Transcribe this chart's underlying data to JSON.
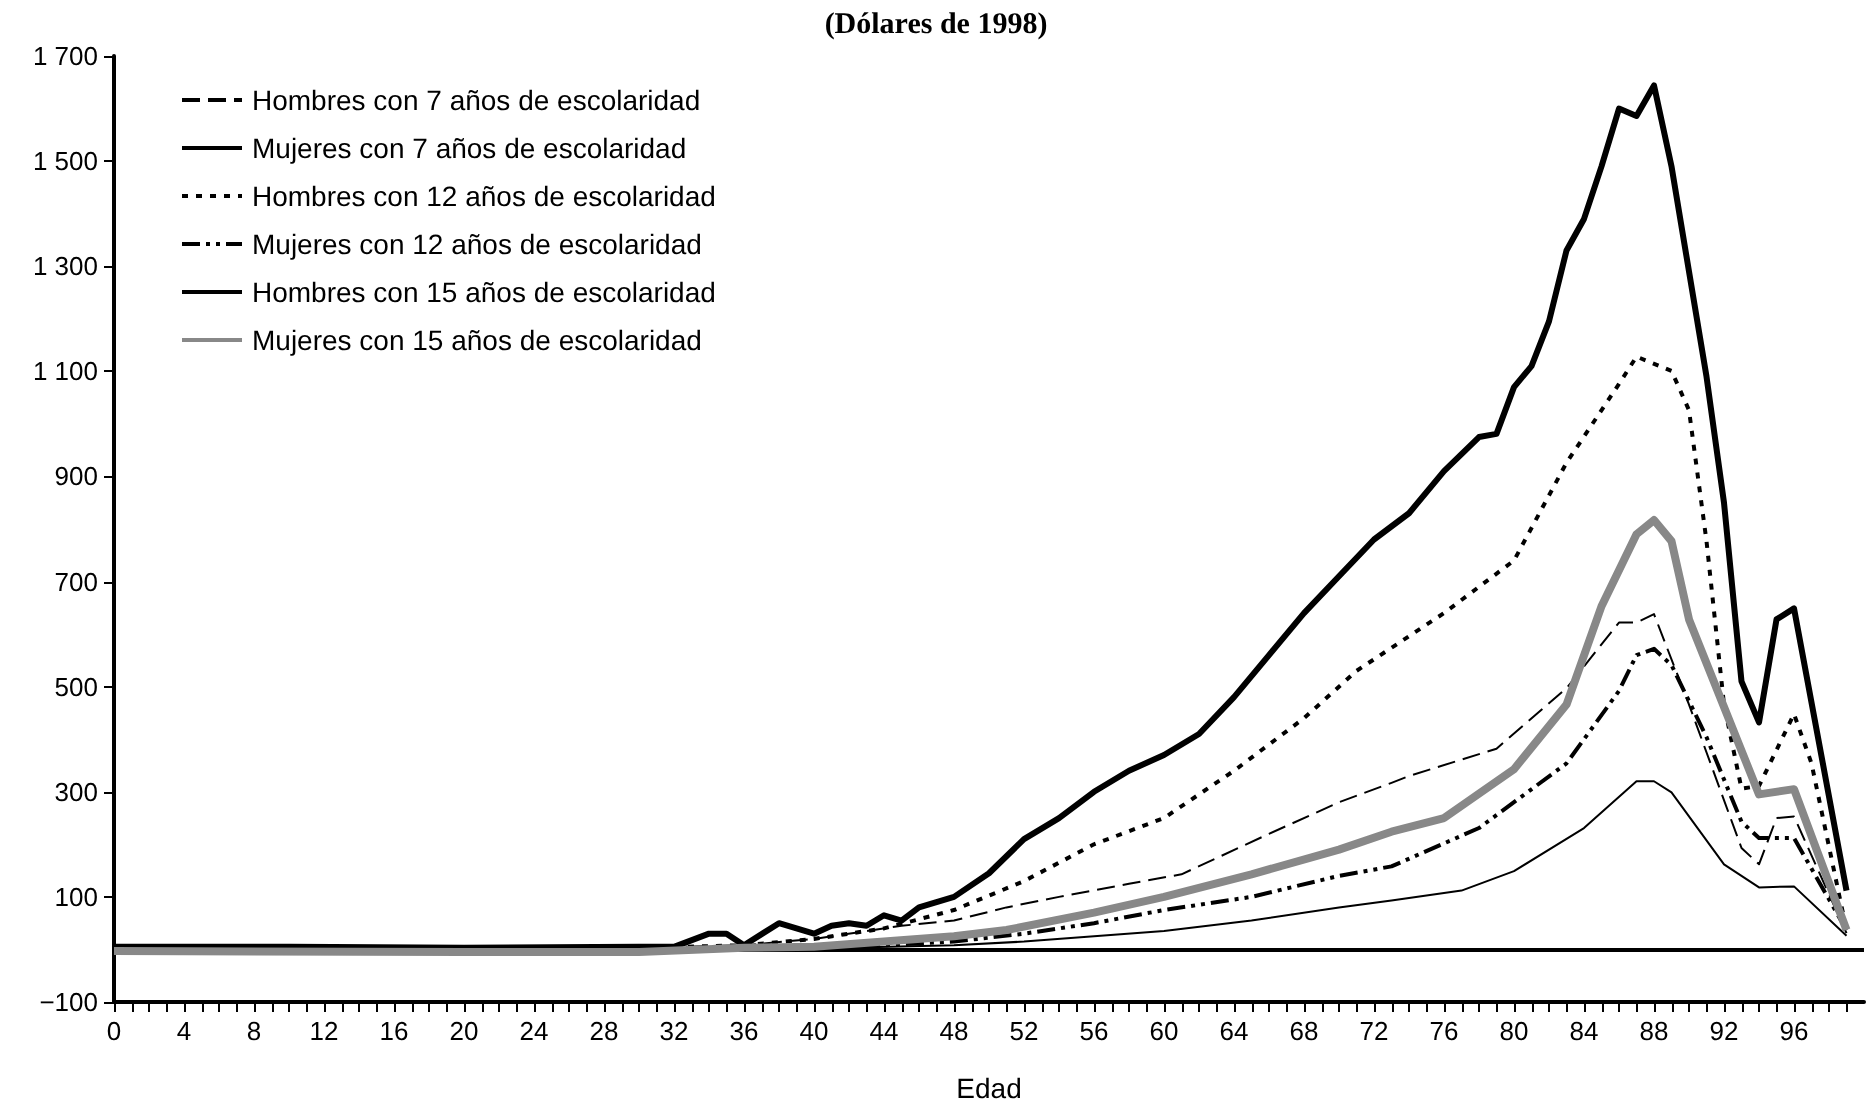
{
  "chart_data": {
    "type": "line",
    "title": "(Dólares de 1998)",
    "xlabel": "Edad",
    "xlim": [
      0,
      100
    ],
    "ylim": [
      -100,
      1700
    ],
    "xticks": [
      0,
      {
        "value": 1,
        "label": null
      },
      {
        "value": 2,
        "label": null
      },
      {
        "value": 3,
        "label": null
      },
      4,
      {
        "value": 5,
        "label": null
      },
      {
        "value": 6,
        "label": null
      },
      {
        "value": 7,
        "label": null
      },
      8,
      {
        "value": 9,
        "label": null
      },
      {
        "value": 10,
        "label": null
      },
      {
        "value": 11,
        "label": null
      },
      12,
      {
        "value": 13,
        "label": null
      },
      {
        "value": 14,
        "label": null
      },
      {
        "value": 15,
        "label": null
      },
      16,
      {
        "value": 17,
        "label": null
      },
      {
        "value": 18,
        "label": null
      },
      {
        "value": 19,
        "label": null
      },
      20,
      {
        "value": 21,
        "label": null
      },
      {
        "value": 22,
        "label": null
      },
      {
        "value": 23,
        "label": null
      },
      24,
      {
        "value": 25,
        "label": null
      },
      {
        "value": 26,
        "label": null
      },
      {
        "value": 27,
        "label": null
      },
      28,
      {
        "value": 29,
        "label": null
      },
      {
        "value": 30,
        "label": null
      },
      {
        "value": 31,
        "label": null
      },
      32,
      {
        "value": 33,
        "label": null
      },
      {
        "value": 34,
        "label": null
      },
      {
        "value": 35,
        "label": null
      },
      36,
      {
        "value": 37,
        "label": null
      },
      {
        "value": 38,
        "label": null
      },
      {
        "value": 39,
        "label": null
      },
      40,
      {
        "value": 41,
        "label": null
      },
      {
        "value": 42,
        "label": null
      },
      {
        "value": 43,
        "label": null
      },
      44,
      {
        "value": 45,
        "label": null
      },
      {
        "value": 46,
        "label": null
      },
      {
        "value": 47,
        "label": null
      },
      48,
      {
        "value": 49,
        "label": null
      },
      {
        "value": 50,
        "label": null
      },
      {
        "value": 51,
        "label": null
      },
      52,
      {
        "value": 53,
        "label": null
      },
      {
        "value": 54,
        "label": null
      },
      {
        "value": 55,
        "label": null
      },
      56,
      {
        "value": 57,
        "label": null
      },
      {
        "value": 58,
        "label": null
      },
      {
        "value": 59,
        "label": null
      },
      60,
      {
        "value": 61,
        "label": null
      },
      {
        "value": 62,
        "label": null
      },
      {
        "value": 63,
        "label": null
      },
      64,
      {
        "value": 65,
        "label": null
      },
      {
        "value": 66,
        "label": null
      },
      {
        "value": 67,
        "label": null
      },
      68,
      {
        "value": 69,
        "label": null
      },
      {
        "value": 70,
        "label": null
      },
      {
        "value": 71,
        "label": null
      },
      72,
      {
        "value": 73,
        "label": null
      },
      {
        "value": 74,
        "label": null
      },
      {
        "value": 75,
        "label": null
      },
      76,
      {
        "value": 77,
        "label": null
      },
      {
        "value": 78,
        "label": null
      },
      {
        "value": 79,
        "label": null
      },
      80,
      {
        "value": 81,
        "label": null
      },
      {
        "value": 82,
        "label": null
      },
      {
        "value": 83,
        "label": null
      },
      84,
      {
        "value": 85,
        "label": null
      },
      {
        "value": 86,
        "label": null
      },
      {
        "value": 87,
        "label": null
      },
      88,
      {
        "value": 89,
        "label": null
      },
      {
        "value": 90,
        "label": null
      },
      {
        "value": 91,
        "label": null
      },
      92,
      {
        "value": 93,
        "label": null
      },
      {
        "value": 94,
        "label": null
      },
      {
        "value": 95,
        "label": null
      },
      96,
      {
        "value": 97,
        "label": null
      },
      {
        "value": 98,
        "label": null
      },
      {
        "value": 99,
        "label": null
      }
    ],
    "yticks": [
      {
        "value": -100,
        "label": "−100"
      },
      100,
      300,
      500,
      700,
      900,
      {
        "value": 1100,
        "label": "1 100"
      },
      {
        "value": 1300,
        "label": "1 300"
      },
      {
        "value": 1500,
        "label": "1 500"
      },
      {
        "value": 1700,
        "label": "1 700"
      }
    ],
    "grid": false,
    "legend": "top left",
    "marker": "none",
    "ref_lines": [
      {
        "axis": "y",
        "value": 0,
        "color": "#000000",
        "line_style": "solid"
      }
    ],
    "series": [
      {
        "name": "Hombres con 7 años de escolaridad",
        "color": "#000000",
        "line_style": "dashed",
        "x": [
          0,
          30,
          36,
          40,
          45,
          48,
          51,
          54,
          58,
          61,
          66,
          70,
          73,
          74,
          79,
          83,
          86,
          87,
          88,
          90,
          93,
          94,
          95,
          96,
          99
        ],
        "values": [
          2,
          3,
          8,
          20,
          45,
          55,
          80,
          100,
          125,
          143,
          220,
          280,
          317,
          330,
          382,
          497,
          622,
          622,
          638,
          466,
          193,
          162,
          250,
          253,
          31
        ]
      },
      {
        "name": "Mujeres con 7 años de escolaridad",
        "color": "#000000",
        "line_style": "solid",
        "x": [
          0,
          40,
          48,
          52,
          56,
          60,
          65,
          70,
          73,
          77,
          80,
          84,
          87,
          88,
          89,
          92,
          94,
          96,
          99
        ],
        "values": [
          0,
          2,
          8,
          15,
          25,
          35,
          55,
          80,
          93,
          112,
          149,
          231,
          320,
          320,
          299,
          162,
          118,
          120,
          26
        ]
      },
      {
        "name": "Hombres con 12 años de escolaridad",
        "color": "#000000",
        "line_style": "dotted",
        "x": [
          0,
          30,
          36,
          40,
          44,
          48,
          52,
          56,
          60,
          64,
          68,
          71,
          76,
          80,
          83,
          86,
          87,
          89,
          90,
          91,
          92,
          93,
          94,
          96,
          97,
          99
        ],
        "values": [
          3,
          3,
          8,
          20,
          40,
          75,
          130,
          200,
          250,
          340,
          440,
          530,
          640,
          740,
          926,
          1076,
          1128,
          1101,
          1026,
          777,
          466,
          306,
          311,
          448,
          354,
          37
        ]
      },
      {
        "name": "Mujeres con 12 años de escolaridad",
        "color": "#000000",
        "line_style": "dashdot",
        "x": [
          0,
          30,
          40,
          44,
          48,
          52,
          56,
          60,
          65,
          70,
          73,
          78,
          83,
          86,
          87,
          88,
          89,
          91,
          93,
          94,
          96,
          99
        ],
        "values": [
          0,
          0,
          3,
          8,
          15,
          30,
          50,
          75,
          100,
          140,
          158,
          231,
          354,
          492,
          560,
          572,
          541,
          404,
          243,
          212,
          212,
          37
        ]
      },
      {
        "name": "Hombres con 15 años de escolaridad",
        "color": "#000000",
        "line_style": "solid",
        "x": [
          0,
          10,
          20,
          30,
          32,
          34,
          35,
          36,
          38,
          40,
          41,
          42,
          43,
          44,
          45,
          46,
          48,
          50,
          52,
          54,
          56,
          58,
          60,
          62,
          64,
          66,
          68,
          70,
          72,
          74,
          76,
          78,
          79,
          80,
          81,
          82,
          83,
          84,
          85,
          86,
          87,
          88,
          89,
          91,
          92,
          93,
          94,
          95,
          96,
          99
        ],
        "values": [
          5,
          5,
          3,
          5,
          5,
          30,
          30,
          8,
          50,
          30,
          45,
          50,
          45,
          65,
          55,
          80,
          100,
          145,
          210,
          250,
          300,
          340,
          370,
          410,
          480,
          560,
          640,
          710,
          780,
          830,
          910,
          975,
          981,
          1070,
          1110,
          1195,
          1330,
          1390,
          1490,
          1600,
          1586,
          1644,
          1490,
          1090,
          850,
          510,
          432,
          628,
          649,
          112
        ]
      },
      {
        "name": "Mujeres con 15 años de escolaridad",
        "color": "#888888",
        "line_style": "solid",
        "x": [
          0,
          20,
          30,
          36,
          40,
          44,
          48,
          51,
          56,
          60,
          65,
          70,
          73,
          76,
          80,
          83,
          85,
          87,
          88,
          89,
          90,
          94,
          96,
          99
        ],
        "values": [
          -3,
          -5,
          -5,
          3,
          5,
          15,
          25,
          37,
          70,
          100,
          143,
          190,
          224,
          250,
          343,
          466,
          653,
          790,
          817,
          777,
          628,
          295,
          305,
          37
        ]
      }
    ]
  }
}
